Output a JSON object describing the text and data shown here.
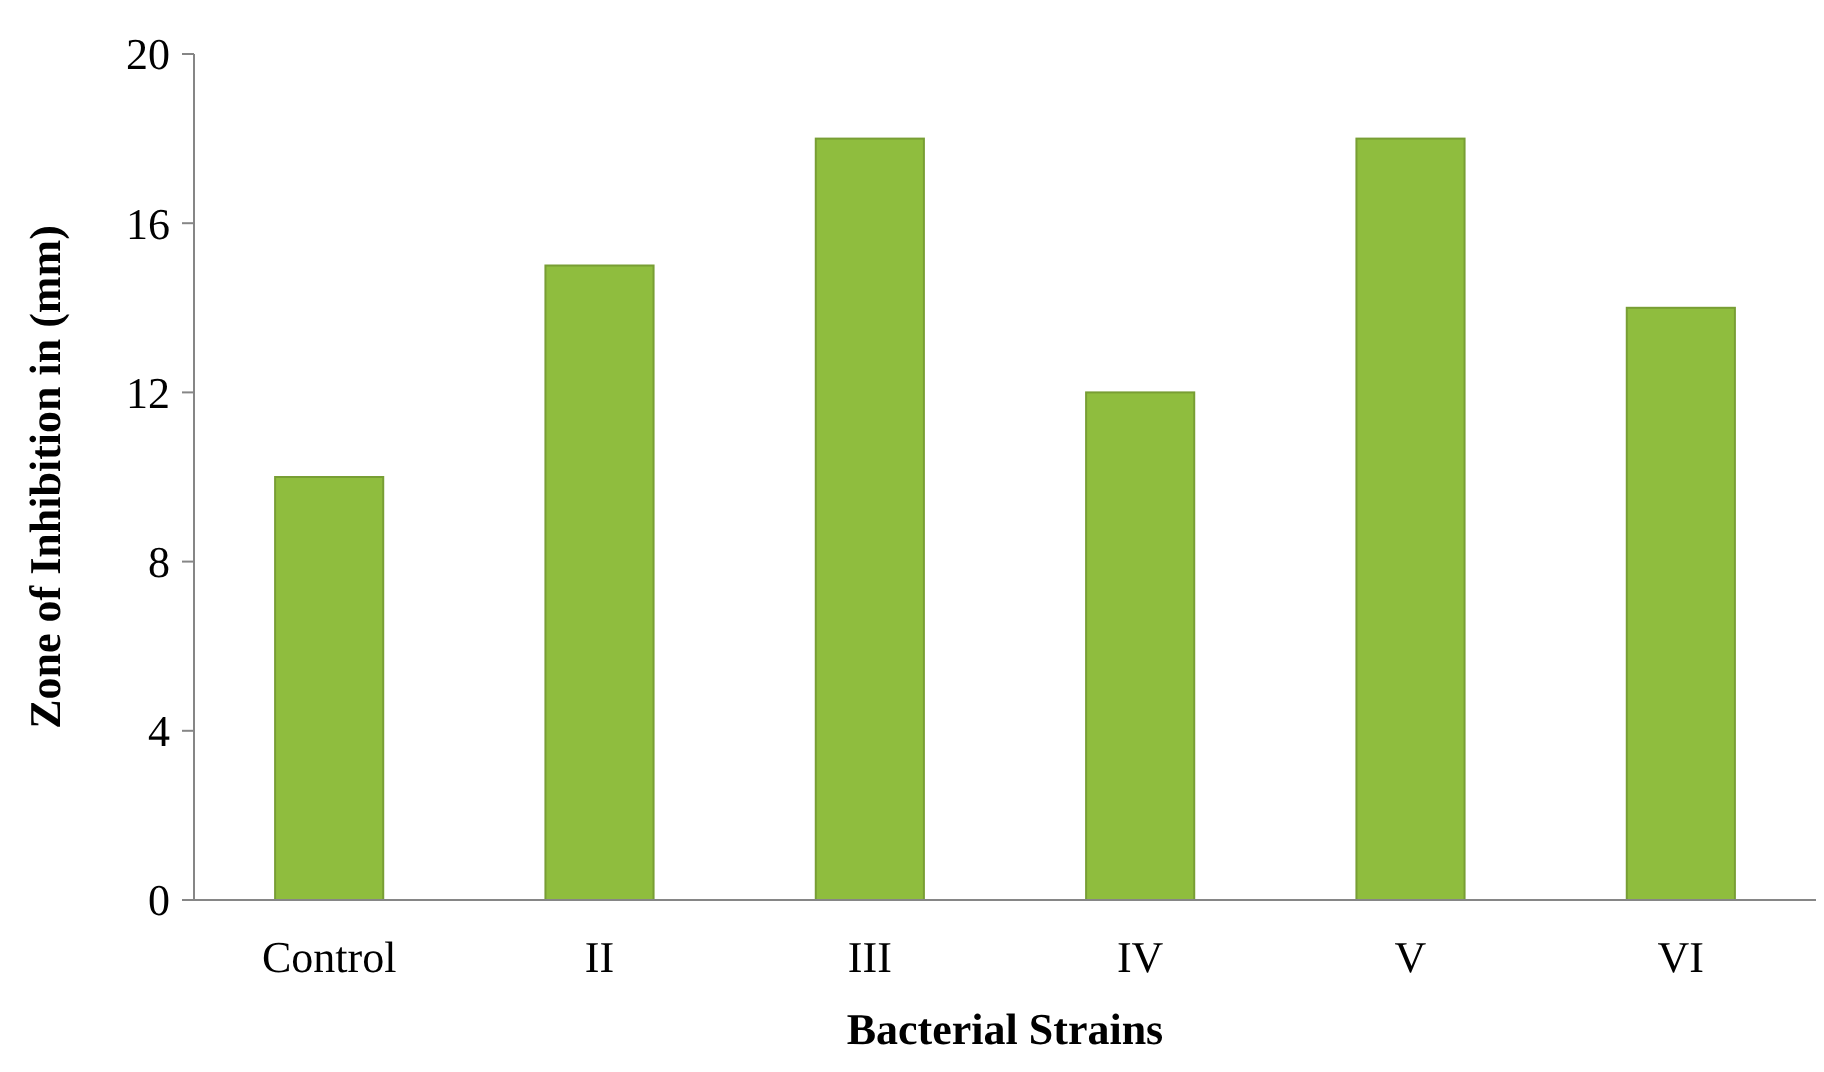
{
  "chart_data": {
    "type": "bar",
    "xlabel": "Bacterial Strains",
    "ylabel": "Zone of Inhibition in (mm)",
    "categories": [
      "Control",
      "II",
      "III",
      "IV",
      "V",
      "VI"
    ],
    "values": [
      10,
      15,
      18,
      12,
      18,
      14
    ],
    "color": "#8fbd3e",
    "ylim": [
      0,
      20
    ],
    "yticks": [
      0,
      4,
      8,
      12,
      16,
      20
    ],
    "grid": false
  }
}
